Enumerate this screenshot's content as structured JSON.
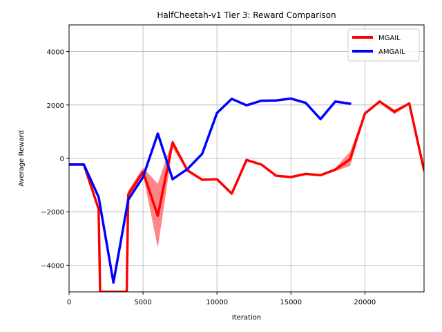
{
  "chart_data": {
    "type": "line",
    "title": "HalfCheetah-v1 Tier 3: Reward Comparison",
    "xlabel": "Iteration",
    "ylabel": "Average Reward",
    "xlim": [
      0,
      24000
    ],
    "ylim": [
      -5000,
      5000
    ],
    "xticks": [
      0,
      5000,
      10000,
      15000,
      20000
    ],
    "yticks": [
      -4000,
      -2000,
      0,
      2000,
      4000
    ],
    "grid": true,
    "legend_position": "top-right",
    "series": [
      {
        "name": "MGAIL",
        "color": "#ff0000",
        "band_color": "#ff8080",
        "x": [
          0,
          1000,
          2000,
          2100,
          3000,
          3900,
          4000,
          5000,
          6000,
          7000,
          8000,
          9000,
          10000,
          11000,
          12000,
          13000,
          14000,
          15000,
          16000,
          17000,
          18000,
          19000,
          20000,
          21000,
          22000,
          23000,
          24000
        ],
        "y": [
          -230,
          -230,
          -1900,
          -5000,
          -5000,
          -5000,
          -1350,
          -500,
          -2150,
          600,
          -450,
          -800,
          -780,
          -1320,
          -60,
          -230,
          -650,
          -700,
          -580,
          -630,
          -420,
          -30,
          1680,
          2130,
          1750,
          2060,
          -450
        ],
        "y_lower": [
          -230,
          -230,
          -1900,
          -5000,
          -5000,
          -5000,
          -1500,
          -600,
          -3350,
          400,
          -500,
          -820,
          -800,
          -1360,
          -100,
          -260,
          -680,
          -730,
          -610,
          -660,
          -480,
          -280,
          1620,
          2080,
          1650,
          2020,
          -500
        ],
        "y_upper": [
          -230,
          -230,
          -1900,
          -5000,
          -5000,
          -5000,
          -1200,
          -350,
          -950,
          700,
          -380,
          -770,
          -750,
          -1280,
          -20,
          -200,
          -620,
          -670,
          -550,
          -600,
          -360,
          250,
          1740,
          2180,
          1820,
          2100,
          -400
        ]
      },
      {
        "name": "AMGAIL",
        "color": "#0000ff",
        "x": [
          0,
          1000,
          2000,
          3000,
          4000,
          5000,
          6000,
          7000,
          8000,
          9000,
          10000,
          11000,
          12000,
          13000,
          14000,
          15000,
          16000,
          17000,
          18000,
          19000
        ],
        "y": [
          -230,
          -230,
          -1450,
          -4650,
          -1550,
          -700,
          930,
          -780,
          -400,
          170,
          1700,
          2230,
          1990,
          2160,
          2170,
          2240,
          2080,
          1470,
          2130,
          2050
        ]
      }
    ]
  }
}
